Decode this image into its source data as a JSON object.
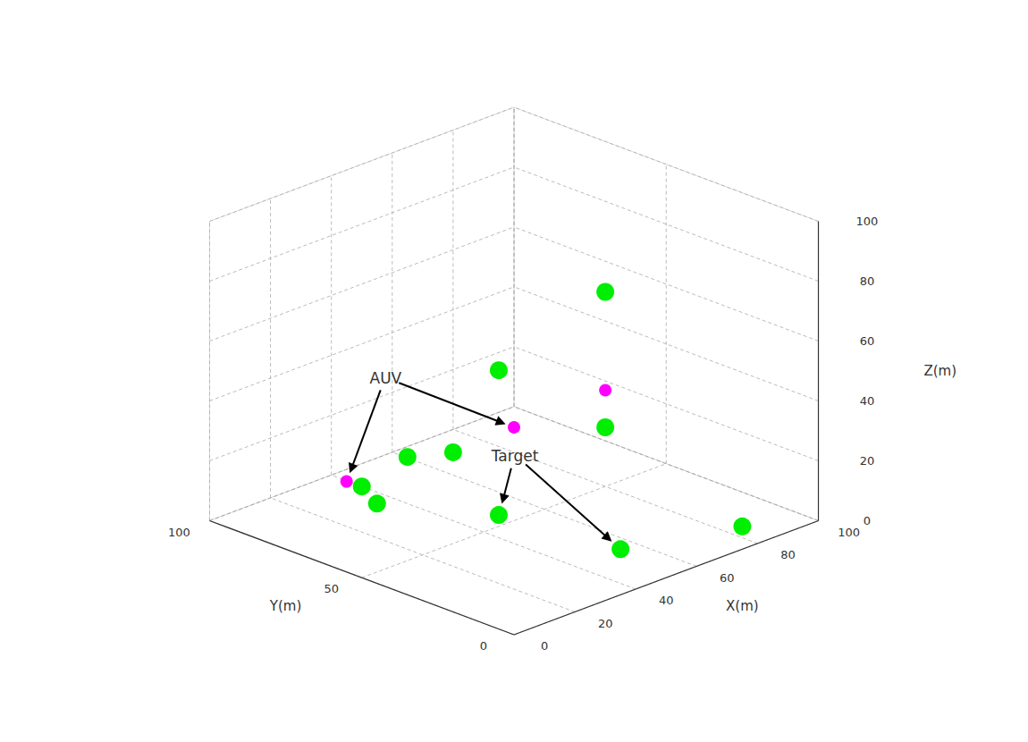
{
  "chart_data": {
    "type": "scatter3d",
    "xlabel": "X(m)",
    "ylabel": "Y(m)",
    "zlabel": "Z(m)",
    "xlim": [
      0,
      100
    ],
    "ylim": [
      0,
      100
    ],
    "zlim": [
      0,
      100
    ],
    "xticks": [
      0,
      20,
      40,
      60,
      80,
      100
    ],
    "yticks": [
      0,
      50,
      100
    ],
    "zticks": [
      0,
      20,
      40,
      60,
      80,
      100
    ],
    "grid": true,
    "series": [
      {
        "color": "#00EE00",
        "annotation": "Target",
        "x": [
          15,
          25,
          50,
          55,
          80,
          35,
          70,
          85,
          40,
          60
        ],
        "y": [
          20,
          60,
          55,
          20,
          50,
          80,
          90,
          10,
          90,
          30
        ],
        "z": [
          75,
          27,
          0,
          0,
          65,
          0,
          0,
          0,
          0,
          35
        ]
      },
      {
        "color": "#FF00FF",
        "annotation": "AUV",
        "x": [
          20,
          45,
          50
        ],
        "y": [
          75,
          45,
          20
        ],
        "z": [
          15,
          35,
          55
        ]
      }
    ]
  }
}
